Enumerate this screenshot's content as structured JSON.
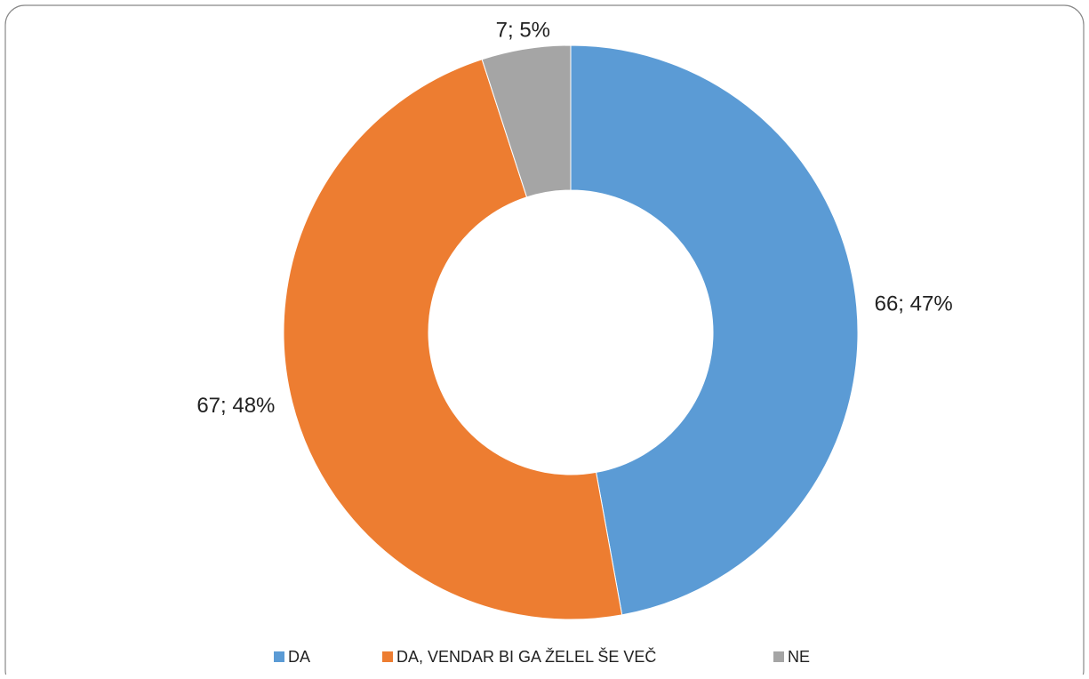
{
  "chart_data": {
    "type": "donut",
    "categories": [
      "DA",
      "DA, VENDAR BI GA ŽELEL ŠE VEČ",
      "NE"
    ],
    "values": [
      66,
      67,
      7
    ],
    "value_labels": [
      "66; 47%",
      "67; 48%",
      "7; 5%"
    ],
    "colors": [
      "#5b9bd5",
      "#ed7d31",
      "#a5a5a5"
    ],
    "legend": "bottom"
  }
}
